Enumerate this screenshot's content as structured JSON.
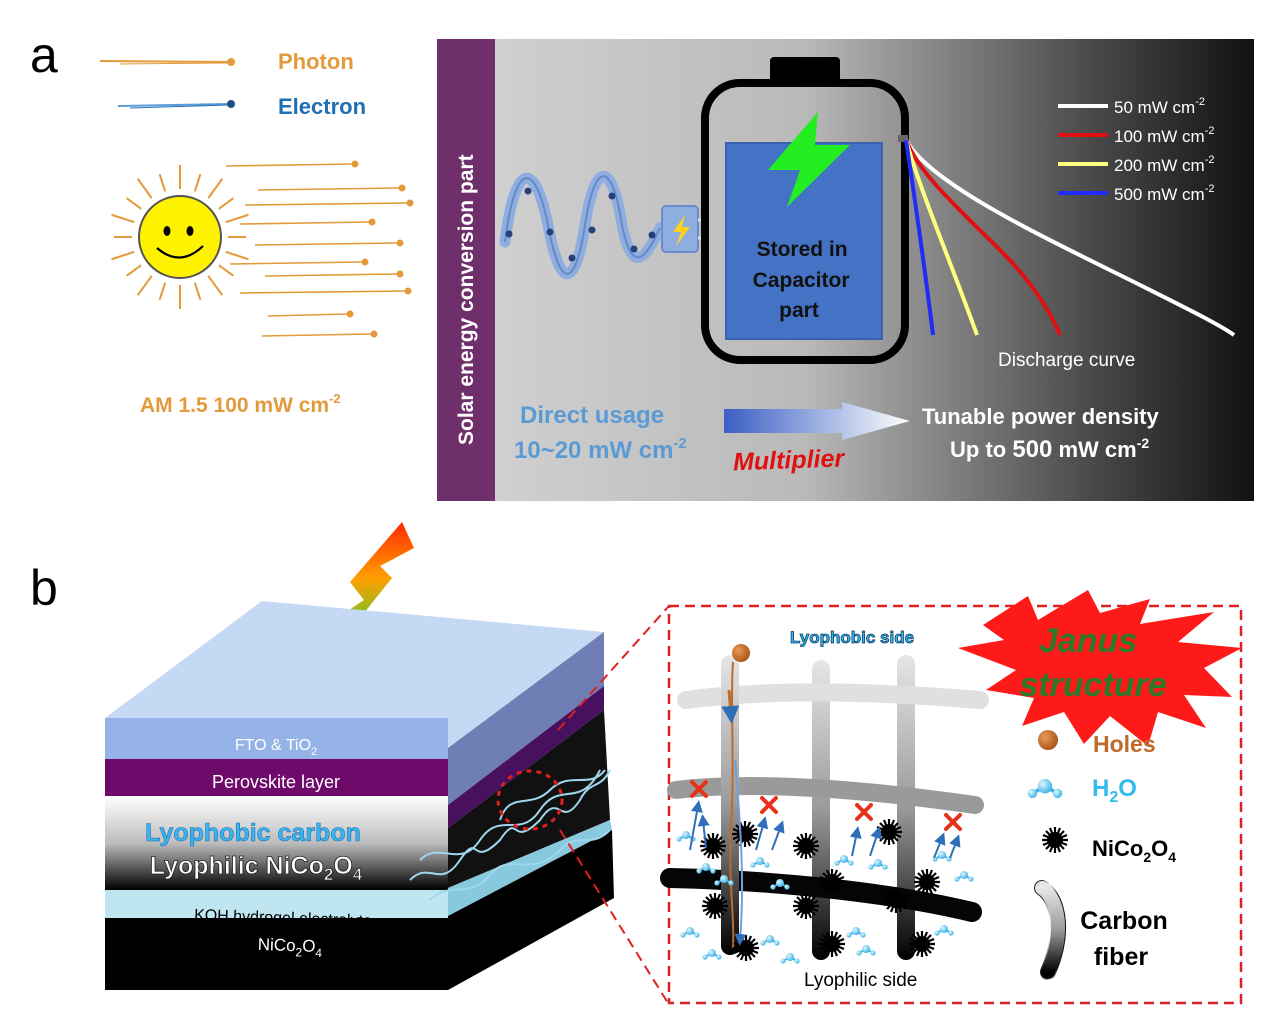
{
  "panel_a": {
    "letter": "a",
    "legend": {
      "photon": "Photon",
      "electron": "Electron"
    },
    "sun_label_main": "AM 1.5  100 mW cm",
    "sun_label_sup": "-2",
    "side_label": "Solar energy conversion part",
    "capacitor_lines": [
      "Stored in",
      "Capacitor",
      "part"
    ],
    "discharge_label": "Discharge curve",
    "curves": [
      {
        "value": "50",
        "unit": "  mW cm",
        "sup": "-2",
        "color": "#ffffff"
      },
      {
        "value": "100",
        "unit": " mW cm",
        "sup": "-2",
        "color": "#e01010"
      },
      {
        "value": "200",
        "unit": " mW cm",
        "sup": "-2",
        "color": "#ffff80"
      },
      {
        "value": "500",
        "unit": " mW cm",
        "sup": "-2",
        "color": "#1e2cf5"
      }
    ],
    "direct_usage": {
      "line1": "Direct usage",
      "line2_main": "10~20 mW cm",
      "line2_sup": "-2"
    },
    "multiplier": "Multiplier",
    "tunable": {
      "line1": "Tunable power density",
      "line2_pre": "Up to ",
      "line2_bold": "500",
      "line2_unit": " mW cm",
      "line2_sup": "-2"
    }
  },
  "panel_b": {
    "letter": "b",
    "layers": {
      "fto_main": "FTO & TiO",
      "fto_sub": "2",
      "perovskite": "Perovskite layer",
      "lyophobic_carbon": "Lyophobic carbon",
      "lyophilic_main": "Lyophilic NiCo",
      "lyophilic_sub1": "2",
      "lyophilic_mid": "O",
      "lyophilic_sub2": "4",
      "koh": "KOH hydrogel electrolyte",
      "nico_main": "NiCo",
      "nico_sub1": "2",
      "nico_mid": "O",
      "nico_sub2": "4"
    },
    "inset": {
      "lyophobic_side": "Lyophobic side",
      "lyophilic_side": "Lyophilic side",
      "janus_line1": "Janus",
      "janus_line2": "structure",
      "holes": "Holes",
      "h2o_main": "H",
      "h2o_sub": "2",
      "h2o_end": "O",
      "nico_main": "NiCo",
      "nico_sub1": "2",
      "nico_mid": "O",
      "nico_sub2": "4",
      "carbon_line1": "Carbon",
      "carbon_line2": "fiber"
    }
  },
  "colors": {
    "orange": "#e39a3a",
    "blue_electron": "#1f6fb4",
    "purple_side": "#6e2f6a",
    "capacitor_blue": "#4472c4",
    "lightning_green": "#22ee22",
    "red_dash": "#e02020",
    "cyan_text": "#33bbee",
    "hole_brown": "#c06a2a"
  }
}
